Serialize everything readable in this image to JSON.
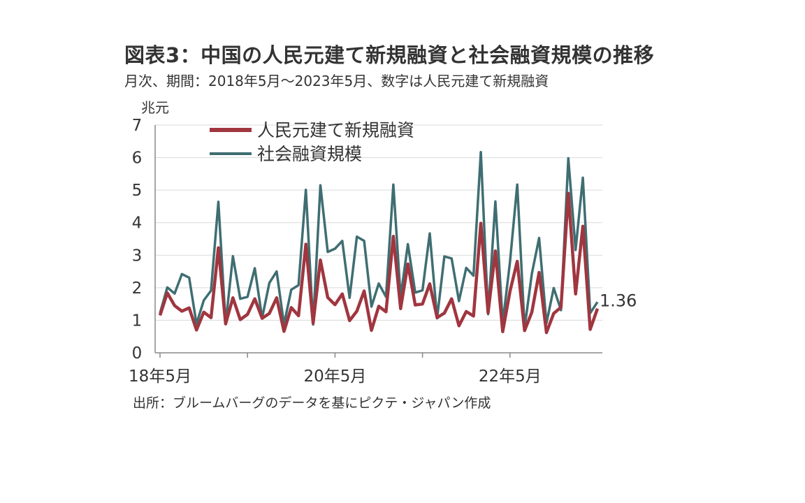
{
  "title": "図表3：中国の人民元建て新規融資と社会融資規模の推移",
  "subtitle": "月次、期間：2018年5月～2023年5月、数字は人民元建て新規融資",
  "source": "出所：ブルームバーグのデータを基にピクテ・ジャパン作成",
  "chart_data": {
    "type": "line",
    "ylabel": "兆元",
    "ylim": [
      0,
      7
    ],
    "yticks": [
      "0",
      "1",
      "2",
      "3",
      "4",
      "5",
      "6",
      "7"
    ],
    "xtick_labels": [
      "18年5月",
      "20年5月",
      "22年5月"
    ],
    "grid": true,
    "legend_position": "top-left",
    "last_label": "1.36",
    "x": [
      "2018-05",
      "2018-06",
      "2018-07",
      "2018-08",
      "2018-09",
      "2018-10",
      "2018-11",
      "2018-12",
      "2019-01",
      "2019-02",
      "2019-03",
      "2019-04",
      "2019-05",
      "2019-06",
      "2019-07",
      "2019-08",
      "2019-09",
      "2019-10",
      "2019-11",
      "2019-12",
      "2020-01",
      "2020-02",
      "2020-03",
      "2020-04",
      "2020-05",
      "2020-06",
      "2020-07",
      "2020-08",
      "2020-09",
      "2020-10",
      "2020-11",
      "2020-12",
      "2021-01",
      "2021-02",
      "2021-03",
      "2021-04",
      "2021-05",
      "2021-06",
      "2021-07",
      "2021-08",
      "2021-09",
      "2021-10",
      "2021-11",
      "2021-12",
      "2022-01",
      "2022-02",
      "2022-03",
      "2022-04",
      "2022-05",
      "2022-06",
      "2022-07",
      "2022-08",
      "2022-09",
      "2022-10",
      "2022-11",
      "2022-12",
      "2023-01",
      "2023-02",
      "2023-03",
      "2023-04",
      "2023-05"
    ],
    "series": [
      {
        "name": "人民元建て新規融資",
        "color": "#a0363f",
        "values": [
          1.15,
          1.84,
          1.45,
          1.28,
          1.38,
          0.7,
          1.25,
          1.08,
          3.23,
          0.89,
          1.69,
          1.02,
          1.18,
          1.66,
          1.06,
          1.21,
          1.69,
          0.66,
          1.39,
          1.14,
          3.34,
          0.91,
          2.85,
          1.7,
          1.48,
          1.81,
          0.99,
          1.28,
          1.9,
          0.69,
          1.43,
          1.26,
          3.58,
          1.36,
          2.73,
          1.47,
          1.5,
          2.12,
          1.08,
          1.22,
          1.66,
          0.83,
          1.27,
          1.13,
          3.98,
          1.23,
          3.13,
          0.65,
          1.89,
          2.81,
          0.68,
          1.25,
          2.47,
          0.62,
          1.21,
          1.4,
          4.9,
          1.81,
          3.89,
          0.72,
          1.36
        ]
      },
      {
        "name": "社会融資規模",
        "color": "#3f6e72",
        "values": [
          1.22,
          2.01,
          1.82,
          2.42,
          2.31,
          0.89,
          1.61,
          1.91,
          4.64,
          0.89,
          2.97,
          1.66,
          1.72,
          2.6,
          1.07,
          2.15,
          2.5,
          0.87,
          1.94,
          2.08,
          5.01,
          0.87,
          5.15,
          3.1,
          3.2,
          3.44,
          1.69,
          3.57,
          3.44,
          1.42,
          2.13,
          1.72,
          5.17,
          1.71,
          3.34,
          1.85,
          1.92,
          3.67,
          1.06,
          2.96,
          2.9,
          1.59,
          2.61,
          2.37,
          6.17,
          1.19,
          4.65,
          0.91,
          2.79,
          5.17,
          0.76,
          2.43,
          3.53,
          0.91,
          1.99,
          1.31,
          5.98,
          3.16,
          5.38,
          1.22,
          1.56
        ]
      }
    ]
  }
}
